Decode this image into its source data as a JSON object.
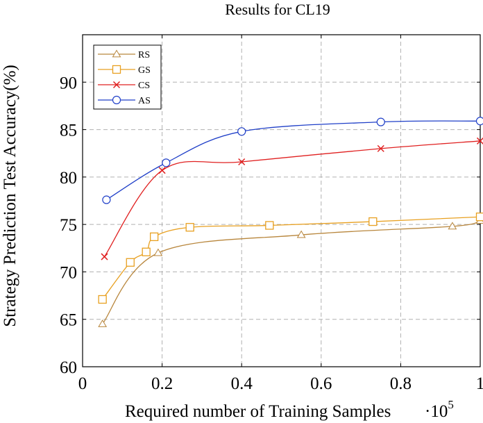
{
  "chart_data": {
    "type": "line",
    "title": "Results for CL19",
    "xlabel": "Required number of Training Samples",
    "x_multiplier": "·10",
    "x_multiplier_exponent": "5",
    "ylabel": "Strategy Prediction Test Accuracy(%)",
    "xlim": [
      0,
      1
    ],
    "ylim": [
      60,
      95
    ],
    "x_ticks": [
      0,
      0.2,
      0.4,
      0.6,
      0.8,
      1
    ],
    "x_tick_labels": [
      "0",
      "0.2",
      "0.4",
      "0.6",
      "0.8",
      "1"
    ],
    "y_ticks": [
      60,
      65,
      70,
      75,
      80,
      85,
      90
    ],
    "y_tick_labels": [
      "60",
      "65",
      "70",
      "75",
      "80",
      "85",
      "90"
    ],
    "grid": true,
    "legend_position": "top-left",
    "series": [
      {
        "name": "RS",
        "color": "#b8863c",
        "marker": "triangle",
        "x": [
          0.05,
          0.19,
          0.55,
          0.93,
          1.0
        ],
        "y": [
          64.5,
          72.0,
          73.9,
          74.8,
          75.4
        ]
      },
      {
        "name": "GS",
        "color": "#e8a020",
        "marker": "square",
        "x": [
          0.05,
          0.12,
          0.16,
          0.18,
          0.27,
          0.47,
          0.73,
          1.0
        ],
        "y": [
          67.1,
          71.0,
          72.1,
          73.7,
          74.7,
          74.9,
          75.3,
          75.8
        ]
      },
      {
        "name": "CS",
        "color": "#e02020",
        "marker": "cross",
        "x": [
          0.055,
          0.2,
          0.4,
          0.75,
          1.0
        ],
        "y": [
          71.6,
          80.7,
          81.6,
          83.0,
          83.8
        ]
      },
      {
        "name": "AS",
        "color": "#1f3fc8",
        "marker": "circle",
        "x": [
          0.06,
          0.21,
          0.4,
          0.75,
          1.0
        ],
        "y": [
          77.6,
          81.5,
          84.8,
          85.8,
          85.9
        ]
      }
    ]
  }
}
